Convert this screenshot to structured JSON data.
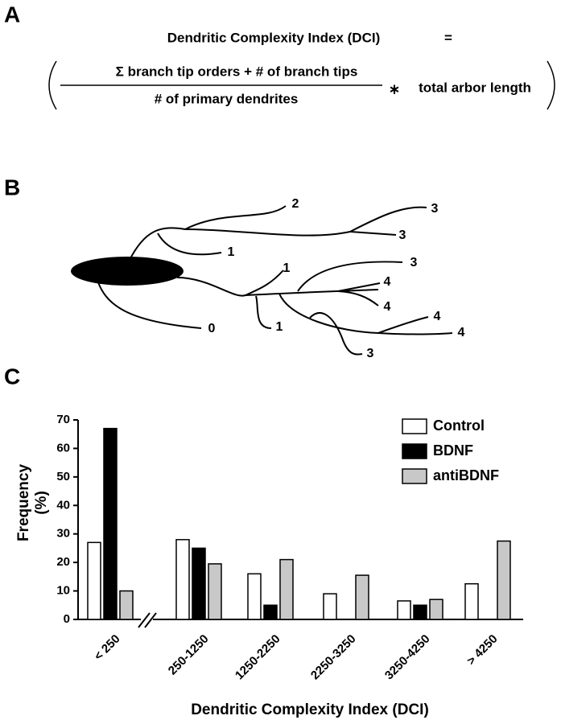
{
  "panels": [
    "A",
    "B",
    "C"
  ],
  "formula": {
    "left": "Dendritic Complexity Index (DCI)",
    "equals": "=",
    "numerator": "Σ branch tip orders + # of branch tips",
    "denominator": "# of primary dendrites",
    "times": "∗",
    "factor": "total arbor length"
  },
  "diagram_labels": [
    "2",
    "3",
    "3",
    "1",
    "1",
    "3",
    "4",
    "4",
    "0",
    "1",
    "4",
    "4",
    "3"
  ],
  "chart_data": {
    "type": "bar",
    "ylabel": "Frequency",
    "yunit": "(%)",
    "xlabel": "Dendritic Complexity Index (DCI)",
    "categories": [
      "< 250",
      "250-1250",
      "1250-2250",
      "2250-3250",
      "3250-4250",
      "> 4250"
    ],
    "series": [
      {
        "name": "Control",
        "color": "#ffffff",
        "values": [
          27,
          28,
          16,
          9,
          6.5,
          12.5
        ]
      },
      {
        "name": "BDNF",
        "color": "#000000",
        "values": [
          67,
          25,
          5,
          0,
          5,
          0
        ]
      },
      {
        "name": "antiBDNF",
        "color": "#c8c8c8",
        "values": [
          10,
          19.5,
          21,
          15.5,
          7,
          27.5
        ]
      }
    ],
    "ylim": [
      0,
      70
    ],
    "yticks": [
      0,
      10,
      20,
      30,
      40,
      50,
      60,
      70
    ],
    "legend": "top-right"
  }
}
